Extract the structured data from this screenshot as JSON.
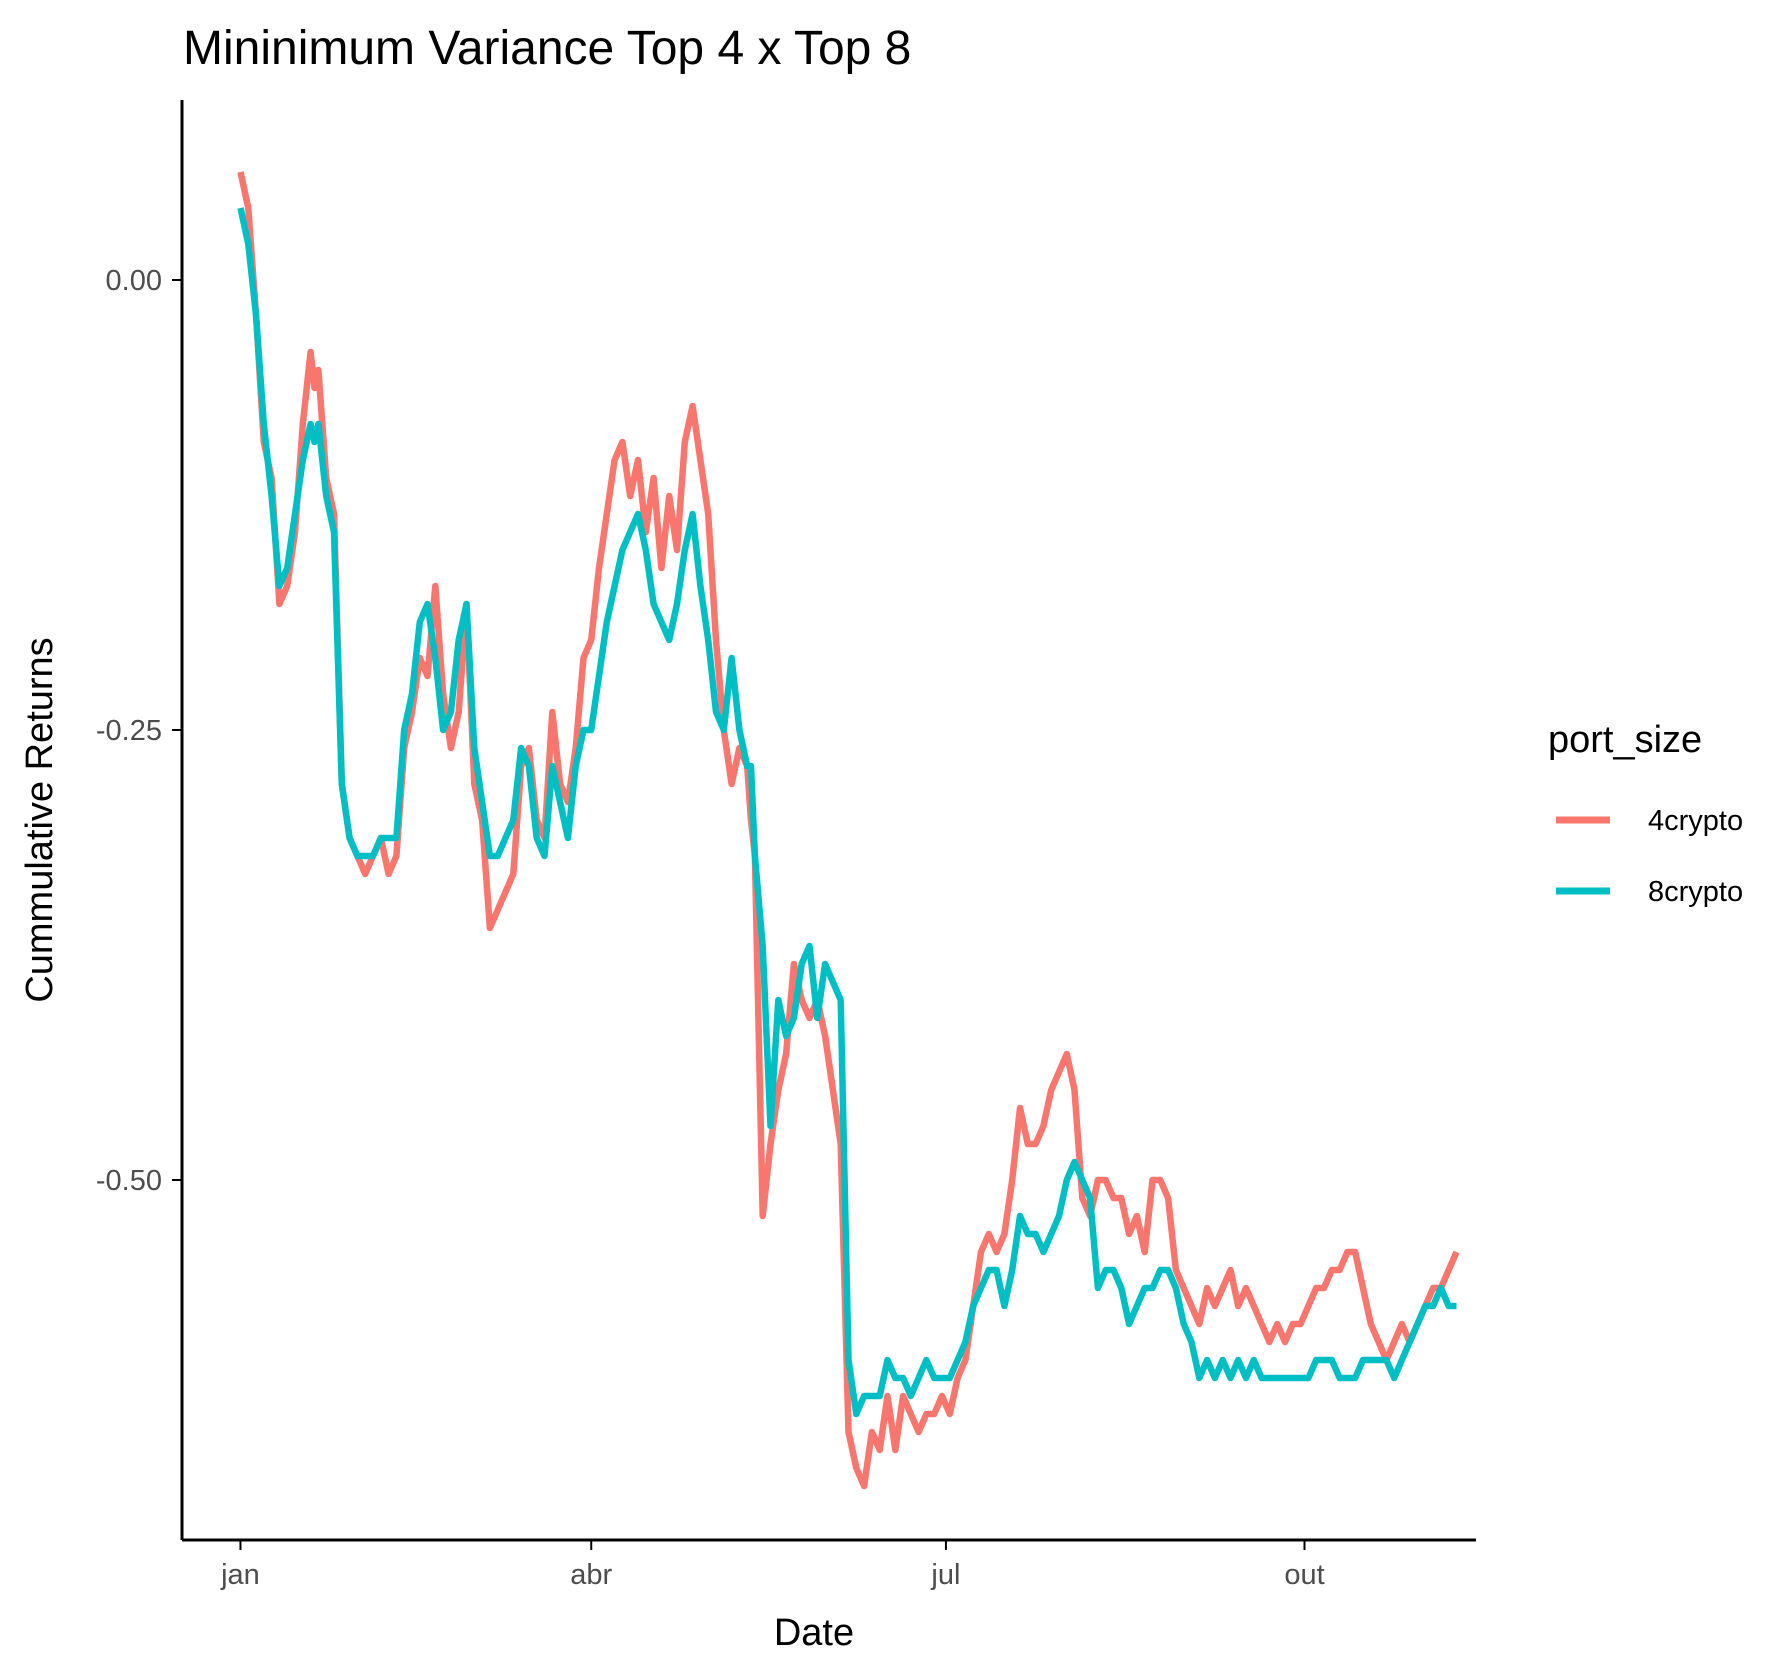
{
  "chart_data": {
    "type": "line",
    "title": "Mininimum Variance  Top 4 x Top 8",
    "xlabel": "Date",
    "ylabel": "Cummulative Returns",
    "x_ticks": [
      {
        "label": "jan",
        "day": 0
      },
      {
        "label": "abr",
        "day": 90
      },
      {
        "label": "jul",
        "day": 181
      },
      {
        "label": "out",
        "day": 273
      }
    ],
    "y_ticks": [
      {
        "label": "0.00",
        "value": 0.0
      },
      {
        "label": "-0.25",
        "value": -0.25
      },
      {
        "label": "-0.50",
        "value": -0.5
      }
    ],
    "xlim": [
      -15,
      317
    ],
    "ylim": [
      -0.7,
      0.1
    ],
    "legend": {
      "title": "port_size",
      "position": "right"
    },
    "series": [
      {
        "name": "4crypto",
        "color": "#F8766D",
        "points": [
          [
            0,
            0.06
          ],
          [
            2,
            0.04
          ],
          [
            4,
            -0.02
          ],
          [
            6,
            -0.09
          ],
          [
            8,
            -0.11
          ],
          [
            10,
            -0.18
          ],
          [
            12,
            -0.17
          ],
          [
            14,
            -0.14
          ],
          [
            16,
            -0.08
          ],
          [
            18,
            -0.04
          ],
          [
            19,
            -0.06
          ],
          [
            20,
            -0.05
          ],
          [
            22,
            -0.11
          ],
          [
            24,
            -0.13
          ],
          [
            26,
            -0.28
          ],
          [
            28,
            -0.31
          ],
          [
            30,
            -0.32
          ],
          [
            32,
            -0.33
          ],
          [
            34,
            -0.32
          ],
          [
            36,
            -0.31
          ],
          [
            38,
            -0.33
          ],
          [
            40,
            -0.32
          ],
          [
            42,
            -0.26
          ],
          [
            44,
            -0.24
          ],
          [
            46,
            -0.21
          ],
          [
            48,
            -0.22
          ],
          [
            50,
            -0.17
          ],
          [
            52,
            -0.23
          ],
          [
            54,
            -0.26
          ],
          [
            56,
            -0.24
          ],
          [
            58,
            -0.18
          ],
          [
            60,
            -0.28
          ],
          [
            62,
            -0.3
          ],
          [
            64,
            -0.36
          ],
          [
            66,
            -0.35
          ],
          [
            68,
            -0.34
          ],
          [
            70,
            -0.33
          ],
          [
            72,
            -0.27
          ],
          [
            74,
            -0.26
          ],
          [
            76,
            -0.3
          ],
          [
            78,
            -0.31
          ],
          [
            80,
            -0.24
          ],
          [
            82,
            -0.28
          ],
          [
            84,
            -0.29
          ],
          [
            86,
            -0.26
          ],
          [
            88,
            -0.21
          ],
          [
            90,
            -0.2
          ],
          [
            92,
            -0.16
          ],
          [
            94,
            -0.13
          ],
          [
            96,
            -0.1
          ],
          [
            98,
            -0.09
          ],
          [
            100,
            -0.12
          ],
          [
            102,
            -0.1
          ],
          [
            104,
            -0.14
          ],
          [
            106,
            -0.11
          ],
          [
            108,
            -0.16
          ],
          [
            110,
            -0.12
          ],
          [
            112,
            -0.15
          ],
          [
            114,
            -0.09
          ],
          [
            116,
            -0.07
          ],
          [
            118,
            -0.1
          ],
          [
            120,
            -0.13
          ],
          [
            122,
            -0.2
          ],
          [
            124,
            -0.25
          ],
          [
            126,
            -0.28
          ],
          [
            128,
            -0.26
          ],
          [
            130,
            -0.27
          ],
          [
            131,
            -0.3
          ],
          [
            132,
            -0.32
          ],
          [
            134,
            -0.52
          ],
          [
            136,
            -0.48
          ],
          [
            138,
            -0.45
          ],
          [
            140,
            -0.43
          ],
          [
            142,
            -0.38
          ],
          [
            144,
            -0.4
          ],
          [
            146,
            -0.41
          ],
          [
            148,
            -0.4
          ],
          [
            150,
            -0.42
          ],
          [
            152,
            -0.45
          ],
          [
            154,
            -0.48
          ],
          [
            156,
            -0.64
          ],
          [
            158,
            -0.66
          ],
          [
            160,
            -0.67
          ],
          [
            162,
            -0.64
          ],
          [
            164,
            -0.65
          ],
          [
            166,
            -0.62
          ],
          [
            168,
            -0.65
          ],
          [
            170,
            -0.62
          ],
          [
            172,
            -0.63
          ],
          [
            174,
            -0.64
          ],
          [
            176,
            -0.63
          ],
          [
            178,
            -0.63
          ],
          [
            180,
            -0.62
          ],
          [
            182,
            -0.63
          ],
          [
            184,
            -0.61
          ],
          [
            186,
            -0.6
          ],
          [
            188,
            -0.57
          ],
          [
            190,
            -0.54
          ],
          [
            192,
            -0.53
          ],
          [
            194,
            -0.54
          ],
          [
            196,
            -0.53
          ],
          [
            198,
            -0.5
          ],
          [
            200,
            -0.46
          ],
          [
            202,
            -0.48
          ],
          [
            204,
            -0.48
          ],
          [
            206,
            -0.47
          ],
          [
            208,
            -0.45
          ],
          [
            210,
            -0.44
          ],
          [
            212,
            -0.43
          ],
          [
            214,
            -0.45
          ],
          [
            216,
            -0.51
          ],
          [
            218,
            -0.52
          ],
          [
            220,
            -0.5
          ],
          [
            222,
            -0.5
          ],
          [
            224,
            -0.51
          ],
          [
            226,
            -0.51
          ],
          [
            228,
            -0.53
          ],
          [
            230,
            -0.52
          ],
          [
            232,
            -0.54
          ],
          [
            234,
            -0.5
          ],
          [
            236,
            -0.5
          ],
          [
            238,
            -0.51
          ],
          [
            240,
            -0.55
          ],
          [
            242,
            -0.56
          ],
          [
            244,
            -0.57
          ],
          [
            246,
            -0.58
          ],
          [
            248,
            -0.56
          ],
          [
            250,
            -0.57
          ],
          [
            252,
            -0.56
          ],
          [
            254,
            -0.55
          ],
          [
            256,
            -0.57
          ],
          [
            258,
            -0.56
          ],
          [
            260,
            -0.57
          ],
          [
            262,
            -0.58
          ],
          [
            264,
            -0.59
          ],
          [
            266,
            -0.58
          ],
          [
            268,
            -0.59
          ],
          [
            270,
            -0.58
          ],
          [
            272,
            -0.58
          ],
          [
            274,
            -0.57
          ],
          [
            276,
            -0.56
          ],
          [
            278,
            -0.56
          ],
          [
            280,
            -0.55
          ],
          [
            282,
            -0.55
          ],
          [
            284,
            -0.54
          ],
          [
            286,
            -0.54
          ],
          [
            288,
            -0.56
          ],
          [
            290,
            -0.58
          ],
          [
            292,
            -0.59
          ],
          [
            294,
            -0.6
          ],
          [
            296,
            -0.59
          ],
          [
            298,
            -0.58
          ],
          [
            300,
            -0.59
          ],
          [
            302,
            -0.58
          ],
          [
            304,
            -0.57
          ],
          [
            306,
            -0.56
          ],
          [
            308,
            -0.56
          ],
          [
            310,
            -0.55
          ],
          [
            312,
            -0.54
          ]
        ]
      },
      {
        "name": "8crypto",
        "color": "#00BFC4",
        "points": [
          [
            0,
            0.04
          ],
          [
            2,
            0.02
          ],
          [
            4,
            -0.02
          ],
          [
            6,
            -0.08
          ],
          [
            8,
            -0.12
          ],
          [
            10,
            -0.17
          ],
          [
            12,
            -0.16
          ],
          [
            14,
            -0.13
          ],
          [
            16,
            -0.1
          ],
          [
            18,
            -0.08
          ],
          [
            19,
            -0.09
          ],
          [
            20,
            -0.08
          ],
          [
            22,
            -0.12
          ],
          [
            24,
            -0.14
          ],
          [
            26,
            -0.28
          ],
          [
            28,
            -0.31
          ],
          [
            30,
            -0.32
          ],
          [
            32,
            -0.32
          ],
          [
            34,
            -0.32
          ],
          [
            36,
            -0.31
          ],
          [
            38,
            -0.31
          ],
          [
            40,
            -0.31
          ],
          [
            42,
            -0.25
          ],
          [
            44,
            -0.23
          ],
          [
            46,
            -0.19
          ],
          [
            48,
            -0.18
          ],
          [
            50,
            -0.21
          ],
          [
            52,
            -0.25
          ],
          [
            54,
            -0.24
          ],
          [
            56,
            -0.2
          ],
          [
            58,
            -0.18
          ],
          [
            60,
            -0.26
          ],
          [
            62,
            -0.29
          ],
          [
            64,
            -0.32
          ],
          [
            66,
            -0.32
          ],
          [
            68,
            -0.31
          ],
          [
            70,
            -0.3
          ],
          [
            72,
            -0.26
          ],
          [
            74,
            -0.27
          ],
          [
            76,
            -0.31
          ],
          [
            78,
            -0.32
          ],
          [
            80,
            -0.27
          ],
          [
            82,
            -0.29
          ],
          [
            84,
            -0.31
          ],
          [
            86,
            -0.27
          ],
          [
            88,
            -0.25
          ],
          [
            90,
            -0.25
          ],
          [
            92,
            -0.22
          ],
          [
            94,
            -0.19
          ],
          [
            96,
            -0.17
          ],
          [
            98,
            -0.15
          ],
          [
            100,
            -0.14
          ],
          [
            102,
            -0.13
          ],
          [
            104,
            -0.15
          ],
          [
            106,
            -0.18
          ],
          [
            108,
            -0.19
          ],
          [
            110,
            -0.2
          ],
          [
            112,
            -0.18
          ],
          [
            114,
            -0.15
          ],
          [
            116,
            -0.13
          ],
          [
            118,
            -0.17
          ],
          [
            120,
            -0.2
          ],
          [
            122,
            -0.24
          ],
          [
            124,
            -0.25
          ],
          [
            126,
            -0.21
          ],
          [
            128,
            -0.25
          ],
          [
            130,
            -0.27
          ],
          [
            131,
            -0.27
          ],
          [
            132,
            -0.32
          ],
          [
            134,
            -0.37
          ],
          [
            136,
            -0.47
          ],
          [
            138,
            -0.4
          ],
          [
            140,
            -0.42
          ],
          [
            142,
            -0.41
          ],
          [
            144,
            -0.38
          ],
          [
            146,
            -0.37
          ],
          [
            148,
            -0.41
          ],
          [
            150,
            -0.38
          ],
          [
            152,
            -0.39
          ],
          [
            154,
            -0.4
          ],
          [
            156,
            -0.6
          ],
          [
            158,
            -0.63
          ],
          [
            160,
            -0.62
          ],
          [
            162,
            -0.62
          ],
          [
            164,
            -0.62
          ],
          [
            166,
            -0.6
          ],
          [
            168,
            -0.61
          ],
          [
            170,
            -0.61
          ],
          [
            172,
            -0.62
          ],
          [
            174,
            -0.61
          ],
          [
            176,
            -0.6
          ],
          [
            178,
            -0.61
          ],
          [
            180,
            -0.61
          ],
          [
            182,
            -0.61
          ],
          [
            184,
            -0.6
          ],
          [
            186,
            -0.59
          ],
          [
            188,
            -0.57
          ],
          [
            190,
            -0.56
          ],
          [
            192,
            -0.55
          ],
          [
            194,
            -0.55
          ],
          [
            196,
            -0.57
          ],
          [
            198,
            -0.55
          ],
          [
            200,
            -0.52
          ],
          [
            202,
            -0.53
          ],
          [
            204,
            -0.53
          ],
          [
            206,
            -0.54
          ],
          [
            208,
            -0.53
          ],
          [
            210,
            -0.52
          ],
          [
            212,
            -0.5
          ],
          [
            214,
            -0.49
          ],
          [
            216,
            -0.5
          ],
          [
            218,
            -0.51
          ],
          [
            220,
            -0.56
          ],
          [
            222,
            -0.55
          ],
          [
            224,
            -0.55
          ],
          [
            226,
            -0.56
          ],
          [
            228,
            -0.58
          ],
          [
            230,
            -0.57
          ],
          [
            232,
            -0.56
          ],
          [
            234,
            -0.56
          ],
          [
            236,
            -0.55
          ],
          [
            238,
            -0.55
          ],
          [
            240,
            -0.56
          ],
          [
            242,
            -0.58
          ],
          [
            244,
            -0.59
          ],
          [
            246,
            -0.61
          ],
          [
            248,
            -0.6
          ],
          [
            250,
            -0.61
          ],
          [
            252,
            -0.6
          ],
          [
            254,
            -0.61
          ],
          [
            256,
            -0.6
          ],
          [
            258,
            -0.61
          ],
          [
            260,
            -0.6
          ],
          [
            262,
            -0.61
          ],
          [
            264,
            -0.61
          ],
          [
            266,
            -0.61
          ],
          [
            268,
            -0.61
          ],
          [
            270,
            -0.61
          ],
          [
            272,
            -0.61
          ],
          [
            274,
            -0.61
          ],
          [
            276,
            -0.6
          ],
          [
            278,
            -0.6
          ],
          [
            280,
            -0.6
          ],
          [
            282,
            -0.61
          ],
          [
            284,
            -0.61
          ],
          [
            286,
            -0.61
          ],
          [
            288,
            -0.6
          ],
          [
            290,
            -0.6
          ],
          [
            292,
            -0.6
          ],
          [
            294,
            -0.6
          ],
          [
            296,
            -0.61
          ],
          [
            298,
            -0.6
          ],
          [
            300,
            -0.59
          ],
          [
            302,
            -0.58
          ],
          [
            304,
            -0.57
          ],
          [
            306,
            -0.57
          ],
          [
            308,
            -0.56
          ],
          [
            310,
            -0.57
          ],
          [
            312,
            -0.57
          ]
        ]
      }
    ]
  }
}
